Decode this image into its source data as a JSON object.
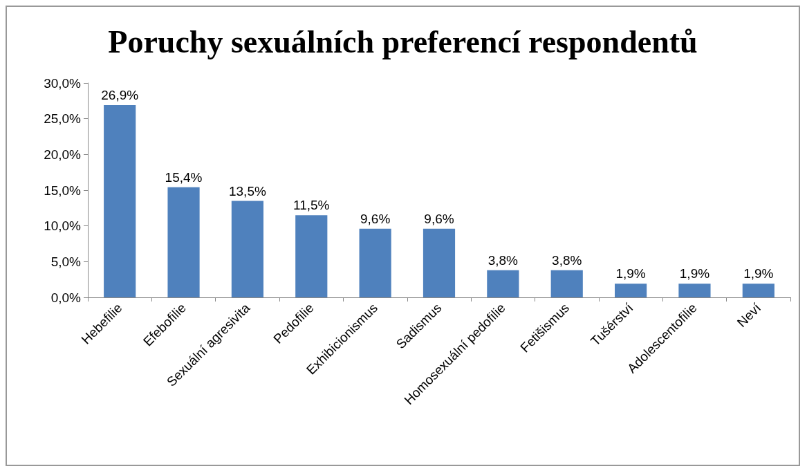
{
  "chart_data": {
    "type": "bar",
    "title": "Poruchy sexuálních preferencí respondentů",
    "categories": [
      "Hebefilie",
      "Efebofilie",
      "Sexuální agresivita",
      "Pedofilie",
      "Exhibicionismus",
      "Sadismus",
      "Homosexuální pedofilie",
      "Fetišismus",
      "Tušérství",
      "Adolescentofilie",
      "Neví"
    ],
    "values": [
      26.9,
      15.4,
      13.5,
      11.5,
      9.6,
      9.6,
      3.8,
      3.8,
      1.9,
      1.9,
      1.9
    ],
    "value_labels": [
      "26,9%",
      "15,4%",
      "13,5%",
      "11,5%",
      "9,6%",
      "9,6%",
      "3,8%",
      "3,8%",
      "1,9%",
      "1,9%",
      "1,9%"
    ],
    "color": "#4f81bd",
    "ylim": [
      0,
      30
    ],
    "yticks": [
      {
        "value": 0,
        "label": "0,0%"
      },
      {
        "value": 5,
        "label": "5,0%"
      },
      {
        "value": 10,
        "label": "10,0%"
      },
      {
        "value": 15,
        "label": "15,0%"
      },
      {
        "value": 20,
        "label": "20,0%"
      },
      {
        "value": 25,
        "label": "25,0%"
      },
      {
        "value": 30,
        "label": "30,0%"
      }
    ],
    "grid": false
  }
}
